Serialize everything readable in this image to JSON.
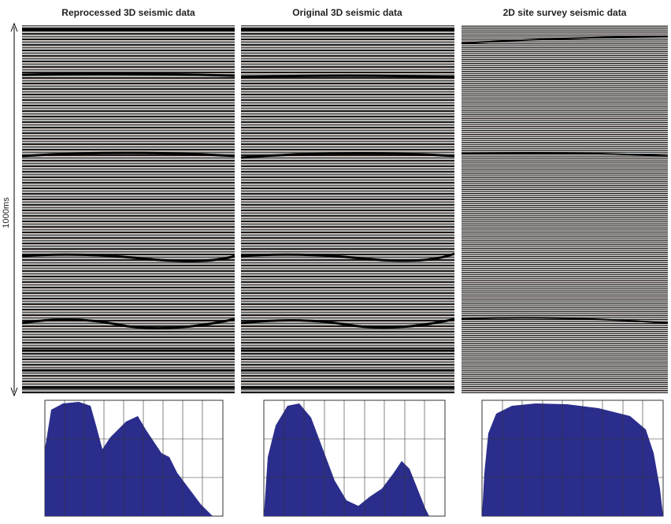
{
  "panels": [
    {
      "title": "Reprocessed 3D seismic data"
    },
    {
      "title": "Original 3D seismic data"
    },
    {
      "title": "2D site survey seismic data"
    }
  ],
  "axis_label": "1000ms"
}
